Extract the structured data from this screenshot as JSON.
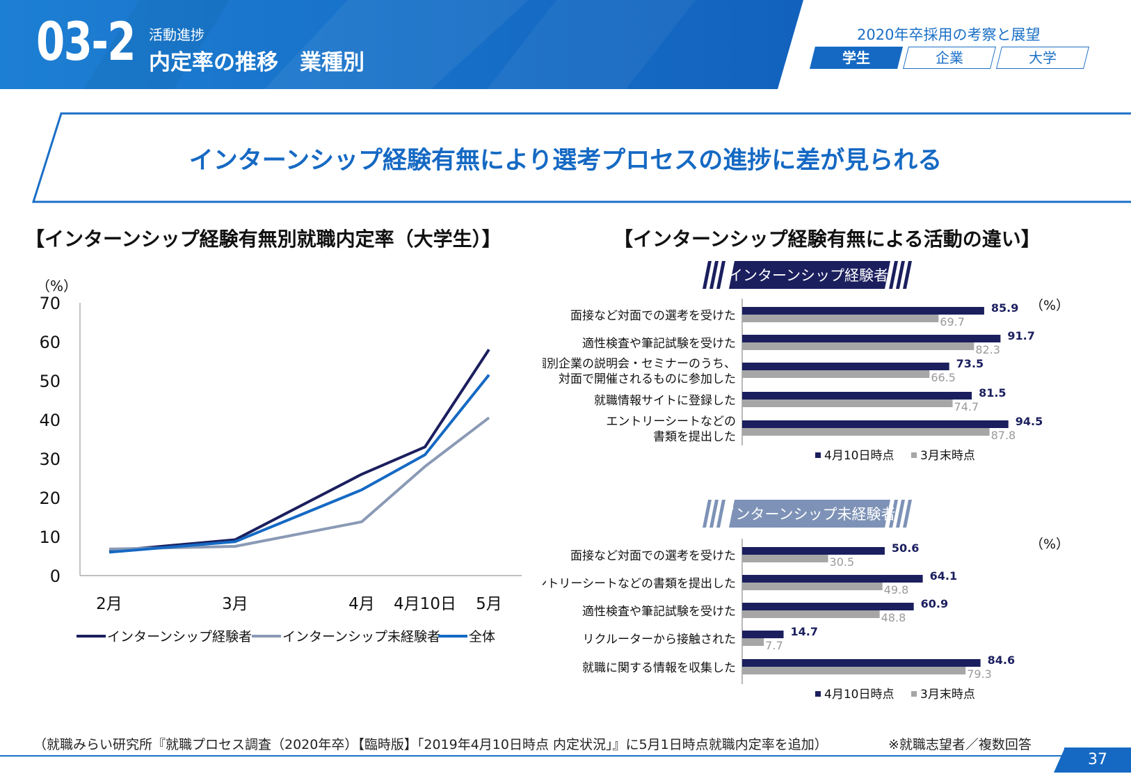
{
  "header": {
    "section_number": "03-2",
    "section_subtitle": "活動進捗",
    "section_title": "内定率の推移　業種別",
    "series_title": "2020年卒採用の考察と展望",
    "tabs": [
      {
        "label": "学生",
        "active": true
      },
      {
        "label": "企業",
        "active": false
      },
      {
        "label": "大学",
        "active": false
      }
    ]
  },
  "headline": "インターンシップ経験有無により選考プロセスの進捗に差が見られる",
  "left_title": "【インターンシップ経験有無別就職内定率（大学生）】",
  "right_title": "【インターンシップ経験有無による活動の違い】",
  "colors": {
    "brand_blue": "#1569c3",
    "navy": "#1b1f5e",
    "gray_blue": "#8a9ab5",
    "bar_gray": "#a6a6a6",
    "light_blue_label": "#7d92b6"
  },
  "chart_data": [
    {
      "type": "line",
      "unit_label": "（%）",
      "x": [
        "2月",
        "3月",
        "4月",
        "4月10日",
        "5月"
      ],
      "ylim": [
        0,
        70
      ],
      "yticks": [
        0,
        10,
        20,
        30,
        40,
        50,
        60,
        70
      ],
      "series": [
        {
          "name": "インターンシップ経験者",
          "color": "#1b1f5e",
          "values": [
            6.3,
            9.2,
            26.0,
            33.0,
            58.0
          ]
        },
        {
          "name": "インターンシップ未経験者",
          "color": "#8a9ab5",
          "values": [
            6.8,
            7.5,
            13.8,
            28.0,
            40.5
          ]
        },
        {
          "name": "全体",
          "color": "#1569c3",
          "values": [
            6.0,
            8.7,
            22.0,
            31.0,
            51.5
          ]
        }
      ]
    },
    {
      "type": "bar",
      "title": "インターンシップ経験者",
      "unit_label": "（%）",
      "categories": [
        "面接など対面での選考を受けた",
        "適性検査や筆記試験を受けた",
        "個別企業の説明会・セミナーのうち、\n対面で開催されるものに参加した",
        "就職情報サイトに登録した",
        "エントリーシートなどの\n書類を提出した"
      ],
      "series": [
        {
          "name": "4月10日時点",
          "color": "#1b1f5e",
          "values": [
            85.9,
            91.7,
            73.5,
            81.5,
            94.5
          ]
        },
        {
          "name": "3月末時点",
          "color": "#a6a6a6",
          "values": [
            69.7,
            82.3,
            66.5,
            74.7,
            87.8
          ]
        }
      ]
    },
    {
      "type": "bar",
      "title": "インターンシップ未経験者",
      "unit_label": "（%）",
      "categories": [
        "面接など対面での選考を受けた",
        "エントリーシートなどの書類を提出した",
        "適性検査や筆記試験を受けた",
        "リクルーターから接触された",
        "就職に関する情報を収集した"
      ],
      "series": [
        {
          "name": "4月10日時点",
          "color": "#1b1f5e",
          "values": [
            50.6,
            64.1,
            60.9,
            14.7,
            84.6
          ]
        },
        {
          "name": "3月末時点",
          "color": "#a6a6a6",
          "values": [
            30.5,
            49.8,
            48.8,
            7.7,
            79.3
          ]
        }
      ]
    }
  ],
  "footer": {
    "source_note": "（就職みらい研究所『就職プロセス調査（2020年卒）【臨時版】「2019年4月10日時点 内定状況」』に5月1日時点就職内定率を追加）",
    "right_note": "※就職志望者／複数回答",
    "page_number": "37"
  }
}
